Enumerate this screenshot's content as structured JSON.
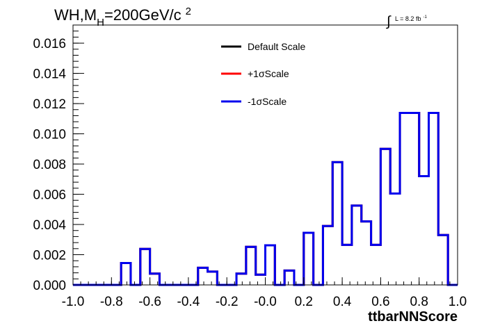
{
  "chart_data": {
    "type": "histogram",
    "title_parts": {
      "main": "WH,M",
      "subscript": "H",
      "rest": "=200GeV/c",
      "superscript": "2"
    },
    "lumi_label": {
      "integral": "∫",
      "text": "L = 8.2 fb",
      "superscript": "-1"
    },
    "xlabel": "ttbarNNScore",
    "ylabel": "",
    "xlim": [
      -1.0,
      1.0
    ],
    "ylim": [
      0.0,
      0.0172
    ],
    "x_ticks": [
      {
        "value": -1.0,
        "label": "-1.0"
      },
      {
        "value": -0.8,
        "label": "-0.8"
      },
      {
        "value": -0.6,
        "label": "-0.6"
      },
      {
        "value": -0.4,
        "label": "-0.4"
      },
      {
        "value": -0.2,
        "label": "-0.2"
      },
      {
        "value": 0.0,
        "label": "-0.0"
      },
      {
        "value": 0.2,
        "label": "0.2"
      },
      {
        "value": 0.4,
        "label": "0.4"
      },
      {
        "value": 0.6,
        "label": "0.6"
      },
      {
        "value": 0.8,
        "label": "0.8"
      },
      {
        "value": 1.0,
        "label": "1.0"
      }
    ],
    "y_ticks": [
      {
        "value": 0.0,
        "label": "0.000"
      },
      {
        "value": 0.002,
        "label": "0.002"
      },
      {
        "value": 0.004,
        "label": "0.004"
      },
      {
        "value": 0.006,
        "label": "0.006"
      },
      {
        "value": 0.008,
        "label": "0.008"
      },
      {
        "value": 0.01,
        "label": "0.010"
      },
      {
        "value": 0.012,
        "label": "0.012"
      },
      {
        "value": 0.014,
        "label": "0.014"
      },
      {
        "value": 0.016,
        "label": "0.016"
      }
    ],
    "bin_edges": [
      -1.0,
      -0.95,
      -0.9,
      -0.85,
      -0.8,
      -0.75,
      -0.7,
      -0.65,
      -0.6,
      -0.55,
      -0.5,
      -0.45,
      -0.4,
      -0.35,
      -0.3,
      -0.25,
      -0.2,
      -0.15,
      -0.1,
      -0.05,
      0.0,
      0.05,
      0.1,
      0.15,
      0.2,
      0.25,
      0.3,
      0.35,
      0.4,
      0.45,
      0.5,
      0.55,
      0.6,
      0.65,
      0.7,
      0.75,
      0.8,
      0.85,
      0.9,
      0.95,
      1.0
    ],
    "series": [
      {
        "name": "Default Scale",
        "color": "#000000",
        "values": [
          0,
          0,
          0,
          0,
          0,
          0.00145,
          0,
          0.00238,
          0.00075,
          0,
          0,
          0,
          0,
          0.00113,
          0.00088,
          0,
          0,
          0.00075,
          0.00252,
          0.00068,
          0.00262,
          0,
          0.00095,
          0,
          0.00345,
          0,
          0.0039,
          0.00812,
          0.00265,
          0.00525,
          0.0042,
          0.00265,
          0.009,
          0.00605,
          0.01138,
          0.01138,
          0.0072,
          0.01138,
          0.0033,
          0
        ]
      },
      {
        "name": "+1σScale",
        "color": "#ff0000",
        "values": [
          0,
          0,
          0,
          0,
          0,
          0.00145,
          0,
          0.00238,
          0.00075,
          0,
          0,
          0,
          0,
          0.00113,
          0.00088,
          0,
          0,
          0.00075,
          0.00252,
          0.00068,
          0.00262,
          0,
          0.00095,
          0,
          0.00345,
          0,
          0.0039,
          0.00812,
          0.00265,
          0.00525,
          0.0042,
          0.00265,
          0.009,
          0.00605,
          0.01138,
          0.01138,
          0.0072,
          0.01138,
          0.0033,
          0
        ]
      },
      {
        "name": "-1σScale",
        "color": "#0000ee",
        "values": [
          0,
          0,
          0,
          0,
          0,
          0.00145,
          0,
          0.00238,
          0.00075,
          0,
          0,
          0,
          0,
          0.00113,
          0.00088,
          0,
          0,
          0.00075,
          0.00252,
          0.00068,
          0.00262,
          0,
          0.00095,
          0,
          0.00345,
          0,
          0.0039,
          0.00812,
          0.00265,
          0.00525,
          0.0042,
          0.00265,
          0.009,
          0.00605,
          0.01138,
          0.01138,
          0.0072,
          0.01138,
          0.0033,
          0
        ]
      }
    ],
    "legend_position": "top-center",
    "grid": false
  }
}
